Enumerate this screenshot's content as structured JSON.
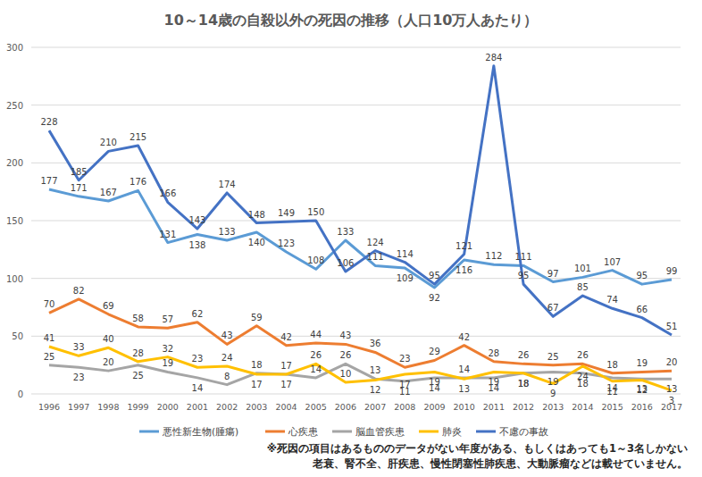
{
  "chart_data": {
    "type": "line",
    "title": "10～14歳の自殺以外の死因の推移（人口10万人あたり）",
    "categories": [
      "1996",
      "1997",
      "1998",
      "1999",
      "2000",
      "2001",
      "2002",
      "2003",
      "2004",
      "2005",
      "2006",
      "2007",
      "2008",
      "2009",
      "2010",
      "2011",
      "2012",
      "2013",
      "2014",
      "2015",
      "2016",
      "2017"
    ],
    "series": [
      {
        "name": "悪性新生物(腫瘍)",
        "color": "#5b9bd5",
        "values": [
          177,
          171,
          167,
          176,
          131,
          138,
          133,
          140,
          123,
          108,
          133,
          111,
          109,
          92,
          116,
          112,
          111,
          97,
          101,
          107,
          95,
          99
        ]
      },
      {
        "name": "心疾患",
        "color": "#ed7d31",
        "values": [
          70,
          82,
          69,
          58,
          57,
          62,
          43,
          59,
          42,
          44,
          43,
          36,
          23,
          29,
          42,
          28,
          26,
          25,
          26,
          18,
          19,
          20
        ]
      },
      {
        "name": "脳血管疾患",
        "color": "#a5a5a5",
        "values": [
          25,
          23,
          20,
          25,
          19,
          14,
          8,
          18,
          17,
          14,
          26,
          13,
          11,
          14,
          14,
          14,
          18,
          19,
          18,
          14,
          13,
          13
        ]
      },
      {
        "name": "肺炎",
        "color": "#ffc000",
        "values": [
          41,
          33,
          40,
          28,
          32,
          23,
          24,
          17,
          17,
          26,
          10,
          12,
          17,
          19,
          13,
          19,
          18,
          9,
          24,
          11,
          12,
          3
        ]
      },
      {
        "name": "不慮の事故",
        "color": "#4472c4",
        "values": [
          228,
          185,
          210,
          215,
          166,
          143,
          174,
          148,
          149,
          150,
          106,
          124,
          114,
          95,
          121,
          284,
          95,
          67,
          85,
          74,
          66,
          51
        ]
      }
    ],
    "ylim": [
      0,
      300
    ],
    "yticks": [
      0,
      50,
      100,
      150,
      200,
      250,
      300
    ],
    "grid": true,
    "legend": "bottom",
    "data_labels": true,
    "annotations": [
      "※死因の項目はあるもののデータがない年度がある、もしくはあっても1～3名しかない",
      "老衰、腎不全、肝疾患、慢性閉塞性肺疾患、大動脈瘤などは載せていません。"
    ]
  }
}
